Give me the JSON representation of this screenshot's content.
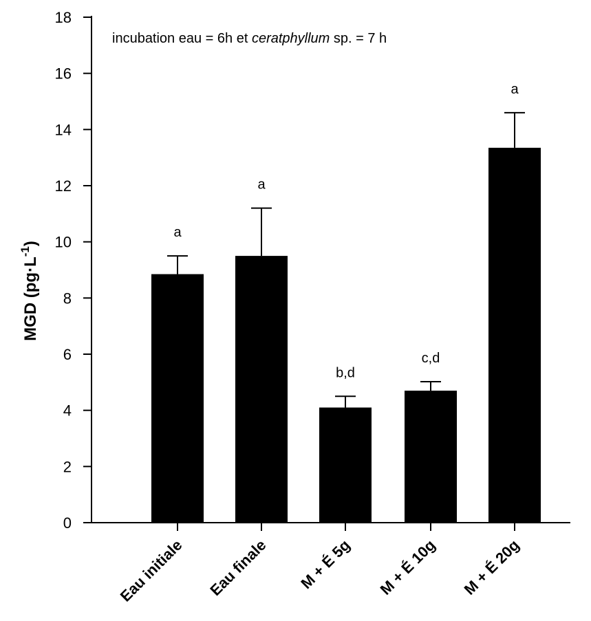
{
  "chart_data": {
    "type": "bar",
    "categories": [
      "Eau initiale",
      "Eau finale",
      "M + É 5g",
      "M + É 10g",
      "M + É 20g"
    ],
    "values": [
      8.85,
      9.5,
      4.1,
      4.7,
      13.35
    ],
    "errors": [
      0.65,
      1.7,
      0.4,
      0.32,
      1.25
    ],
    "significance": [
      "a",
      "a",
      "b,d",
      "c,d",
      "a"
    ],
    "ylabel": "MGD (pg·L",
    "ylabel_superscript": "-1",
    "ylabel_suffix": ")",
    "ylim": [
      0,
      18
    ],
    "yticks": [
      0,
      2,
      4,
      6,
      8,
      10,
      12,
      14,
      16,
      18
    ],
    "annotation": {
      "part1": "incubation eau = 6h et ",
      "italic": "ceratphyllum",
      "part2": " sp. = 7 h"
    },
    "bar_color": "#000000",
    "grid": false,
    "legend": "none"
  }
}
